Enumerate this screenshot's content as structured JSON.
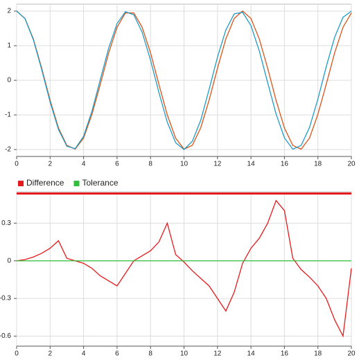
{
  "chart_data": [
    {
      "type": "line",
      "x": [
        0,
        0.5,
        1,
        1.5,
        2,
        2.5,
        3,
        3.5,
        4,
        4.5,
        5,
        5.5,
        6,
        6.5,
        7,
        7.5,
        8,
        8.5,
        9,
        9.5,
        10,
        10.5,
        11,
        11.5,
        12,
        12.5,
        13,
        13.5,
        14,
        14.5,
        15,
        15.5,
        16,
        16.5,
        17,
        17.5,
        18,
        18.5,
        19,
        19.5,
        20
      ],
      "series": [
        {
          "color": "#d95319",
          "values": [
            2,
            1.788,
            1.193,
            0.347,
            -0.574,
            -1.377,
            -1.88,
            -1.988,
            -1.669,
            -0.981,
            -0.115,
            0.791,
            1.532,
            1.946,
            1.946,
            1.532,
            0.793,
            -0.116,
            -0.998,
            -1.671,
            -1.989,
            -1.878,
            -1.37,
            -0.571,
            0.346,
            1.196,
            1.788,
            2,
            1.787,
            1.192,
            0.346,
            -0.576,
            -1.379,
            -1.881,
            -1.988,
            -1.667,
            -0.979,
            -0.112,
            0.793,
            1.533,
            1.946
          ]
        },
        {
          "color": "#1f9bc4",
          "values": [
            2,
            1.781,
            1.17,
            0.306,
            -0.627,
            -1.42,
            -1.904,
            -1.975,
            -1.617,
            -0.893,
            0.024,
            0.931,
            1.64,
            1.983,
            1.892,
            1.389,
            0.583,
            -0.352,
            -1.208,
            -1.803,
            -1.999,
            -1.759,
            -1.153,
            -0.261,
            0.67,
            1.456,
            1.92,
            1.965,
            1.58,
            0.846,
            -0.069,
            -0.972,
            -1.662,
            -1.989,
            -1.881,
            -1.36,
            -0.54,
            0.396,
            1.244,
            1.821,
            1.998
          ]
        }
      ],
      "xlim": [
        0,
        20
      ],
      "xticks": [
        0,
        2,
        4,
        6,
        8,
        10,
        12,
        14,
        16,
        18,
        20
      ],
      "ylim": [
        -2.2,
        2.2
      ],
      "yticks": [
        -2,
        -1,
        0,
        1,
        2
      ],
      "grid": true
    },
    {
      "type": "line",
      "x": [
        0,
        0.5,
        1,
        1.5,
        2,
        2.5,
        3,
        3.5,
        4,
        4.5,
        5,
        5.5,
        6,
        6.5,
        7,
        7.5,
        8,
        8.5,
        9,
        9.5,
        10,
        10.5,
        11,
        11.5,
        12,
        12.5,
        13,
        13.5,
        14,
        14.5,
        15,
        15.5,
        16,
        16.5,
        17,
        17.5,
        18,
        18.5,
        19,
        19.5,
        20
      ],
      "series": [
        {
          "name": "Difference",
          "color": "#e41a1c",
          "values": [
            0,
            0.01,
            0.03,
            0.06,
            0.1,
            0.16,
            0.02,
            0,
            -0.02,
            -0.06,
            -0.12,
            -0.16,
            -0.2,
            -0.1,
            0,
            0.04,
            0.08,
            0.15,
            0.3,
            0.05,
            -0.01,
            -0.08,
            -0.14,
            -0.2,
            -0.3,
            -0.4,
            -0.25,
            -0.02,
            0.1,
            0.18,
            0.3,
            0.48,
            0.4,
            0.02,
            -0.07,
            -0.13,
            -0.2,
            -0.3,
            -0.47,
            -0.6,
            -0.06
          ]
        },
        {
          "name": "Tolerance",
          "color": "#2fbf3a",
          "x": [
            0,
            20
          ],
          "values": [
            0,
            0
          ]
        }
      ],
      "xlim": [
        0,
        20
      ],
      "xticks": [
        0,
        2,
        4,
        6,
        8,
        10,
        12,
        14,
        16,
        18,
        20
      ],
      "ylim": [
        -0.68,
        0.55
      ],
      "yticks": [
        -0.6,
        -0.3,
        0,
        0.3
      ],
      "grid": true,
      "legend": "top"
    }
  ]
}
